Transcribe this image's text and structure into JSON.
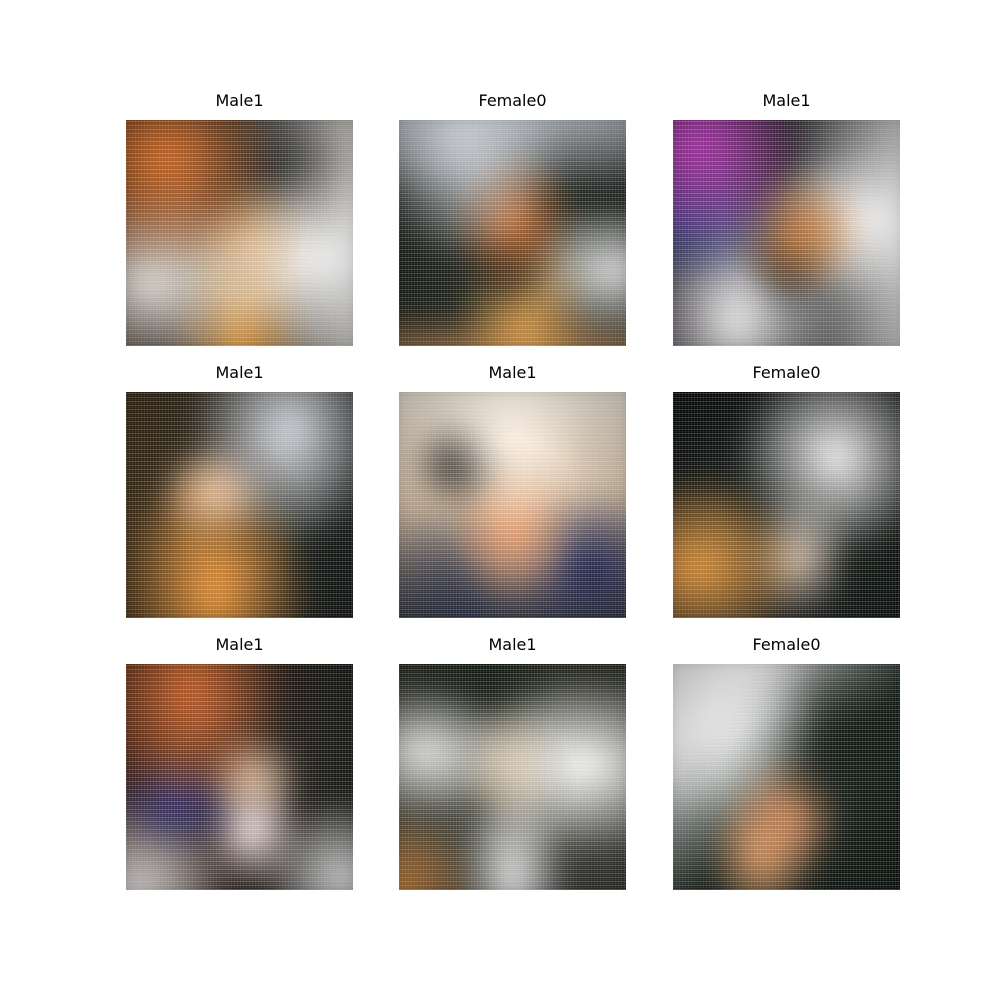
{
  "figure": {
    "grid": {
      "rows": 3,
      "cols": 3
    },
    "panels": [
      {
        "title": "Male1"
      },
      {
        "title": "Female0"
      },
      {
        "title": "Male1"
      },
      {
        "title": "Male1"
      },
      {
        "title": "Male1"
      },
      {
        "title": "Female0"
      },
      {
        "title": "Male1"
      },
      {
        "title": "Male1"
      },
      {
        "title": "Female0"
      }
    ]
  }
}
